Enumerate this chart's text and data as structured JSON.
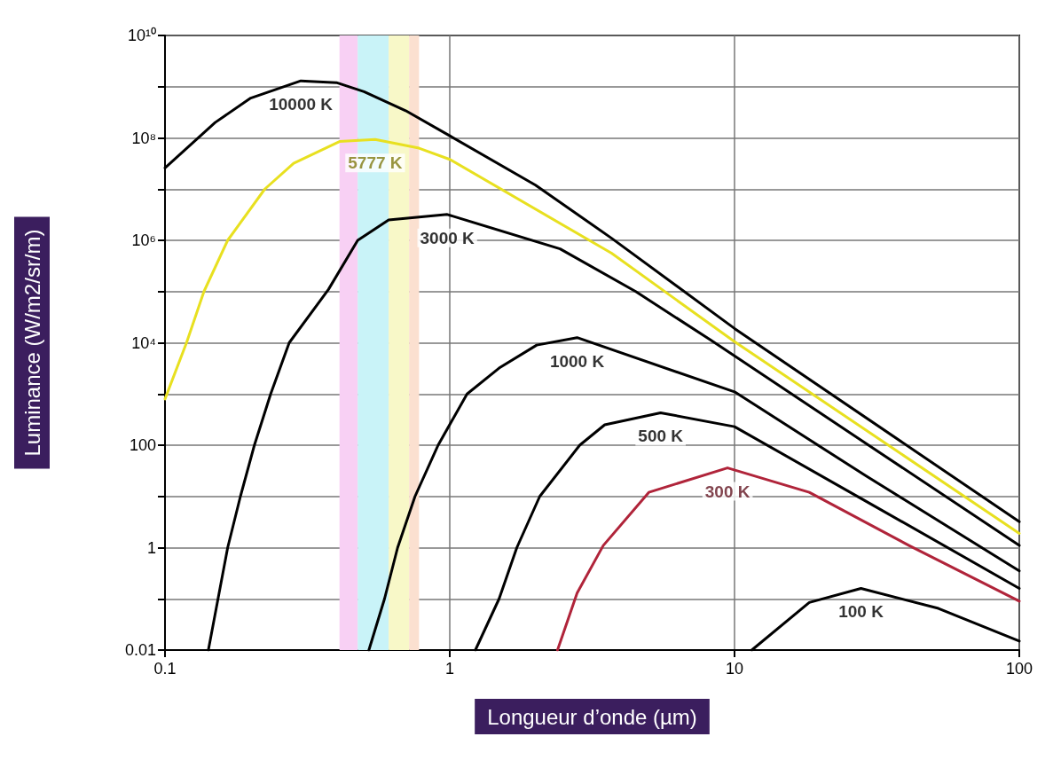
{
  "chart_data": {
    "type": "line",
    "xlabel": "Longueur d’onde (µm)",
    "ylabel": "Luminance (W/m2/sr/m)",
    "log": "xy",
    "grid": true,
    "marker": "none",
    "line_style": "solid",
    "xlim": [
      0.1,
      100
    ],
    "xticks": [
      0.1,
      1,
      10,
      100
    ],
    "ylim": [
      0.01,
      10000000000
    ],
    "yticks": [
      0.01,
      {
        "value": 0.1,
        "label": null
      },
      1,
      {
        "value": 10,
        "label": null
      },
      100,
      {
        "value": 1000,
        "label": null
      },
      {
        "value": 10000,
        "label": "10⁴"
      },
      {
        "value": 100000,
        "label": null
      },
      {
        "value": 1000000,
        "label": "10⁶"
      },
      {
        "value": 10000000,
        "label": null
      },
      {
        "value": 100000000,
        "label": "10⁸"
      },
      {
        "value": 1000000000,
        "label": null
      },
      {
        "value": 10000000000,
        "label": "10¹⁰"
      }
    ],
    "bands": [
      {
        "axis": "x",
        "from": 0.41,
        "to": 0.475,
        "color": "#f8d0f4"
      },
      {
        "axis": "x",
        "from": 0.475,
        "to": 0.61,
        "color": "#c9f3f8"
      },
      {
        "axis": "x",
        "from": 0.61,
        "to": 0.72,
        "color": "#f8f8c8"
      },
      {
        "axis": "x",
        "from": 0.72,
        "to": 0.78,
        "color": "#fbe0d0"
      }
    ],
    "series": [
      {
        "name": "10000 K",
        "color": "#000000",
        "x": [
          0.1,
          0.15,
          0.2,
          0.3,
          0.4,
          0.5,
          0.7,
          1,
          2,
          3.7,
          10,
          100
        ],
        "values": [
          26000000,
          200000000,
          600000000,
          1300000000,
          1200000000,
          800000000,
          340000000,
          110000000,
          12000000,
          1100000,
          19000,
          3.2
        ]
      },
      {
        "name": "5777 K",
        "color": "#e8e020",
        "x": [
          0.1,
          0.119,
          0.137,
          0.166,
          0.224,
          0.283,
          0.41,
          0.547,
          0.78,
          1,
          3.7,
          10,
          100
        ],
        "values": [
          800,
          10000,
          100000,
          1000000,
          10000000,
          32000000,
          85000000,
          93000000,
          63000000,
          38000000,
          560000,
          10500,
          1.9
        ]
      },
      {
        "name": "3000 K",
        "color": "#000000",
        "x": [
          0.142,
          0.166,
          0.184,
          0.206,
          0.235,
          0.273,
          0.375,
          0.475,
          0.61,
          0.98,
          2.44,
          4.5,
          8.3,
          100
        ],
        "values": [
          0.01,
          1,
          10,
          100,
          1000,
          10000,
          110000,
          1000000,
          2500000,
          3200000,
          680000,
          100000,
          11000,
          1.1
        ]
      },
      {
        "name": "1000 K",
        "color": "#000000",
        "x": [
          0.52,
          0.59,
          0.656,
          0.755,
          0.91,
          1.15,
          1.49,
          2.02,
          2.8,
          10,
          29,
          100
        ],
        "values": [
          0.01,
          0.1,
          1,
          10,
          100,
          1000,
          3200,
          9000,
          12600,
          1100,
          25,
          0.35
        ]
      },
      {
        "name": "500 K",
        "color": "#000000",
        "x": [
          1.23,
          1.49,
          1.72,
          2.07,
          2.86,
          3.5,
          5.5,
          10,
          29,
          100
        ],
        "values": [
          0.01,
          0.1,
          1,
          10,
          100,
          250,
          430,
          230,
          8,
          0.16
        ]
      },
      {
        "name": "300 K",
        "color": "#b0243a",
        "x": [
          2.39,
          2.8,
          3.46,
          5,
          9.45,
          18.3,
          41,
          100
        ],
        "values": [
          0.01,
          0.13,
          1.1,
          12,
          36,
          12,
          1.1,
          0.09
        ]
      },
      {
        "name": "100 K",
        "color": "#000000",
        "x": [
          11.5,
          18.3,
          27.8,
          52,
          100
        ],
        "values": [
          0.01,
          0.085,
          0.16,
          0.065,
          0.015
        ]
      }
    ]
  }
}
